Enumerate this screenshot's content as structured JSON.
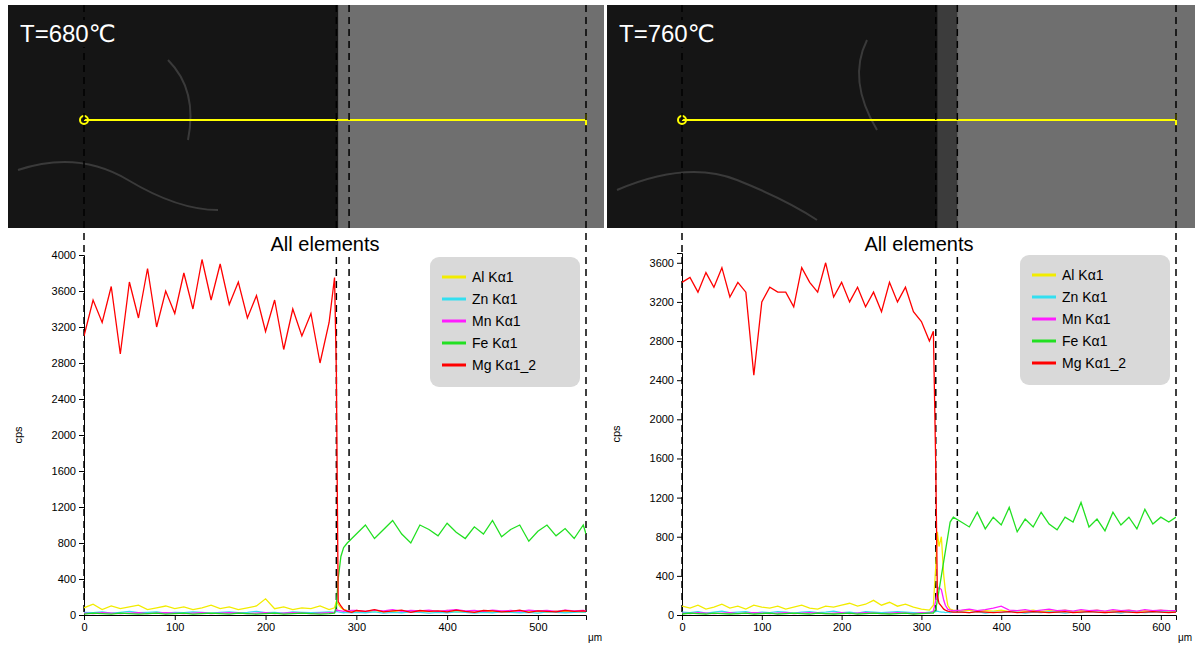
{
  "chart_data": [
    {
      "type": "line",
      "panel_title": "T=680℃",
      "title": "All elements",
      "y_label": "cps",
      "x_label": "μm",
      "legend": "top-right",
      "grid": false,
      "xlim": [
        0,
        553
      ],
      "xticks": [
        0,
        100,
        200,
        300,
        400,
        500
      ],
      "ylim": [
        0,
        4000
      ],
      "yticks": [
        0,
        400,
        800,
        1200,
        1600,
        2000,
        2400,
        2800,
        3200,
        3600,
        4000
      ],
      "vlines": [
        0,
        278,
        292,
        553
      ],
      "x": [
        0,
        10,
        20,
        30,
        40,
        50,
        60,
        70,
        80,
        90,
        100,
        110,
        120,
        130,
        140,
        150,
        160,
        170,
        180,
        190,
        200,
        210,
        220,
        230,
        240,
        250,
        260,
        270,
        276,
        278,
        280,
        283,
        286,
        290,
        295,
        300,
        310,
        320,
        330,
        340,
        350,
        360,
        370,
        380,
        390,
        400,
        410,
        420,
        430,
        440,
        450,
        460,
        470,
        480,
        490,
        500,
        510,
        520,
        530,
        540,
        550,
        553
      ],
      "series": [
        {
          "name": "Al Kα1",
          "color": "#f2ec00",
          "values": [
            80,
            120,
            60,
            100,
            70,
            90,
            110,
            60,
            80,
            100,
            70,
            90,
            60,
            80,
            110,
            70,
            90,
            60,
            80,
            100,
            180,
            70,
            90,
            60,
            80,
            70,
            100,
            60,
            80,
            150,
            120,
            80,
            60,
            50,
            40,
            40,
            30,
            50,
            35,
            40,
            30,
            45,
            35,
            40,
            30,
            50,
            35,
            40,
            30,
            45,
            35,
            40,
            30,
            45,
            35,
            40,
            30,
            45,
            35,
            40,
            30,
            35
          ]
        },
        {
          "name": "Zn Kα1",
          "color": "#33dff0",
          "values": [
            30,
            25,
            35,
            20,
            30,
            40,
            25,
            30,
            35,
            20,
            30,
            25,
            35,
            30,
            20,
            30,
            35,
            25,
            30,
            40,
            25,
            30,
            20,
            35,
            30,
            25,
            30,
            35,
            30,
            40,
            35,
            30,
            25,
            30,
            25,
            30,
            25,
            35,
            20,
            30,
            25,
            35,
            30,
            20,
            30,
            25,
            35,
            30,
            20,
            30,
            25,
            35,
            30,
            25,
            30,
            20,
            35,
            30,
            25,
            30,
            35,
            30
          ]
        },
        {
          "name": "Mn Kα1",
          "color": "#ff1cff",
          "values": [
            20,
            15,
            25,
            20,
            15,
            20,
            25,
            15,
            20,
            25,
            20,
            15,
            20,
            25,
            15,
            20,
            25,
            20,
            15,
            20,
            25,
            15,
            20,
            25,
            20,
            15,
            20,
            25,
            30,
            60,
            50,
            45,
            40,
            45,
            50,
            50,
            40,
            55,
            45,
            60,
            40,
            50,
            45,
            55,
            40,
            50,
            60,
            45,
            50,
            40,
            55,
            45,
            50,
            40,
            55,
            45,
            50,
            40,
            55,
            45,
            50,
            45
          ]
        },
        {
          "name": "Fe Kα1",
          "color": "#22e022",
          "values": [
            10,
            20,
            15,
            10,
            20,
            15,
            10,
            15,
            20,
            10,
            15,
            20,
            10,
            15,
            20,
            15,
            10,
            20,
            15,
            10,
            15,
            20,
            10,
            15,
            20,
            15,
            10,
            15,
            20,
            100,
            400,
            650,
            750,
            800,
            850,
            900,
            1000,
            850,
            950,
            1050,
            900,
            800,
            1000,
            950,
            880,
            1020,
            920,
            850,
            980,
            900,
            1050,
            870,
            950,
            1000,
            820,
            930,
            1000,
            880,
            960,
            850,
            1000,
            900
          ]
        },
        {
          "name": "Mg Kα1_2",
          "color": "#ff0000",
          "values": [
            3100,
            3500,
            3250,
            3650,
            2900,
            3700,
            3300,
            3850,
            3200,
            3600,
            3350,
            3800,
            3400,
            3950,
            3500,
            3900,
            3450,
            3700,
            3300,
            3550,
            3150,
            3500,
            2950,
            3400,
            3100,
            3350,
            2800,
            3250,
            3750,
            2700,
            150,
            100,
            60,
            40,
            30,
            50,
            40,
            60,
            35,
            45,
            55,
            30,
            50,
            40,
            45,
            35,
            55,
            40,
            30,
            50,
            45,
            35,
            40,
            55,
            30,
            45,
            40,
            35,
            50,
            40,
            45,
            40
          ]
        }
      ]
    },
    {
      "type": "line",
      "panel_title": "T=760℃",
      "title": "All elements",
      "y_label": "cps",
      "x_label": "μm",
      "legend": "top-right",
      "grid": false,
      "xlim": [
        0,
        619
      ],
      "xticks": [
        0,
        100,
        200,
        300,
        400,
        500,
        600
      ],
      "ylim": [
        0,
        3700
      ],
      "yticks": [
        0,
        400,
        800,
        1200,
        1600,
        2000,
        2400,
        2800,
        3200,
        3600
      ],
      "vlines": [
        0,
        318,
        345,
        619
      ],
      "x": [
        0,
        10,
        20,
        30,
        40,
        50,
        60,
        70,
        80,
        90,
        100,
        110,
        120,
        130,
        140,
        150,
        160,
        170,
        180,
        190,
        200,
        210,
        220,
        230,
        240,
        250,
        260,
        270,
        280,
        290,
        300,
        310,
        315,
        318,
        320,
        322,
        325,
        328,
        330,
        333,
        336,
        340,
        350,
        360,
        370,
        380,
        390,
        400,
        410,
        420,
        430,
        440,
        450,
        460,
        470,
        480,
        490,
        500,
        510,
        520,
        530,
        540,
        550,
        560,
        570,
        580,
        590,
        600,
        610,
        619
      ],
      "series": [
        {
          "name": "Al Kα1",
          "color": "#f2ec00",
          "values": [
            90,
            70,
            100,
            60,
            80,
            110,
            70,
            90,
            60,
            100,
            80,
            70,
            90,
            60,
            80,
            100,
            70,
            60,
            90,
            80,
            100,
            120,
            90,
            110,
            150,
            100,
            130,
            90,
            110,
            80,
            60,
            50,
            100,
            500,
            850,
            700,
            800,
            400,
            250,
            100,
            60,
            50,
            40,
            50,
            35,
            45,
            40,
            50,
            35,
            45,
            40,
            50,
            35,
            45,
            40,
            50,
            35,
            45,
            40,
            50,
            35,
            45,
            40,
            50,
            35,
            45,
            40,
            50,
            35,
            40
          ]
        },
        {
          "name": "Zn Kα1",
          "color": "#33dff0",
          "values": [
            30,
            25,
            35,
            20,
            30,
            40,
            25,
            30,
            35,
            20,
            30,
            25,
            35,
            30,
            20,
            30,
            35,
            25,
            30,
            40,
            25,
            30,
            20,
            35,
            30,
            25,
            30,
            35,
            30,
            25,
            20,
            30,
            30,
            35,
            40,
            35,
            30,
            30,
            25,
            30,
            25,
            30,
            30,
            25,
            35,
            20,
            30,
            25,
            35,
            30,
            20,
            30,
            25,
            35,
            30,
            20,
            30,
            25,
            35,
            30,
            25,
            30,
            20,
            35,
            30,
            25,
            30,
            35,
            30,
            30
          ]
        },
        {
          "name": "Mn Kα1",
          "color": "#ff1cff",
          "values": [
            20,
            15,
            25,
            20,
            15,
            20,
            25,
            15,
            20,
            25,
            20,
            15,
            20,
            25,
            15,
            20,
            25,
            20,
            15,
            20,
            25,
            15,
            20,
            25,
            20,
            15,
            20,
            25,
            20,
            15,
            25,
            20,
            40,
            150,
            250,
            280,
            260,
            150,
            100,
            60,
            50,
            45,
            50,
            60,
            45,
            55,
            70,
            90,
            50,
            45,
            55,
            40,
            50,
            60,
            45,
            50,
            40,
            55,
            45,
            50,
            40,
            55,
            45,
            50,
            40,
            55,
            45,
            50,
            45,
            45
          ]
        },
        {
          "name": "Fe Kα1",
          "color": "#22e022",
          "values": [
            10,
            20,
            15,
            10,
            20,
            15,
            10,
            15,
            20,
            10,
            15,
            20,
            10,
            15,
            20,
            15,
            10,
            20,
            15,
            10,
            15,
            20,
            10,
            15,
            20,
            15,
            10,
            15,
            20,
            10,
            15,
            20,
            20,
            60,
            150,
            250,
            400,
            550,
            650,
            800,
            950,
            1000,
            950,
            900,
            1050,
            880,
            1000,
            920,
            1100,
            850,
            980,
            900,
            1050,
            930,
            870,
            1000,
            950,
            1150,
            900,
            980,
            860,
            1050,
            920,
            1000,
            880,
            1080,
            930,
            1000,
            950,
            1000
          ]
        },
        {
          "name": "Mg Kα1_2",
          "color": "#ff0000",
          "values": [
            3400,
            3450,
            3300,
            3500,
            3350,
            3550,
            3250,
            3400,
            3300,
            2450,
            3200,
            3350,
            3300,
            3300,
            3150,
            3550,
            3400,
            3300,
            3600,
            3250,
            3400,
            3200,
            3350,
            3150,
            3300,
            3100,
            3400,
            3200,
            3350,
            3100,
            3000,
            2800,
            2900,
            1500,
            200,
            120,
            90,
            60,
            50,
            40,
            35,
            30,
            30,
            25,
            35,
            30,
            25,
            30,
            35,
            25,
            30,
            35,
            30,
            25,
            30,
            35,
            25,
            30,
            35,
            30,
            25,
            30,
            35,
            30,
            25,
            30,
            35,
            30,
            25,
            30
          ]
        }
      ]
    }
  ]
}
